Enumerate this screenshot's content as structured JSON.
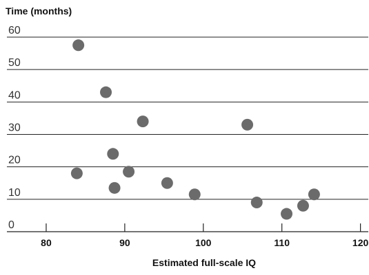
{
  "chart_data": {
    "type": "scatter",
    "title": "",
    "xlabel": "Estimated full-scale IQ",
    "ylabel": "Time (months)",
    "xlim": [
      75,
      121
    ],
    "ylim": [
      0,
      60
    ],
    "x_ticks": [
      80,
      90,
      100,
      110,
      120
    ],
    "y_ticks": [
      0,
      10,
      20,
      30,
      40,
      50,
      60
    ],
    "grid": "horizontal",
    "point_color": "#6b6b6b",
    "grid_color": "#222222",
    "text_color": "#111111",
    "series": [
      {
        "x": [
          84.1,
          87.6,
          88.5,
          92.3,
          105.6,
          83.9,
          88.7,
          90.5,
          95.4,
          98.9,
          106.8,
          110.6,
          112.7,
          114.1
        ],
        "y": [
          57.5,
          43.0,
          24.0,
          34.0,
          33.0,
          18.0,
          13.5,
          18.5,
          15.0,
          11.5,
          9.0,
          5.5,
          8.0,
          11.5
        ]
      }
    ]
  }
}
